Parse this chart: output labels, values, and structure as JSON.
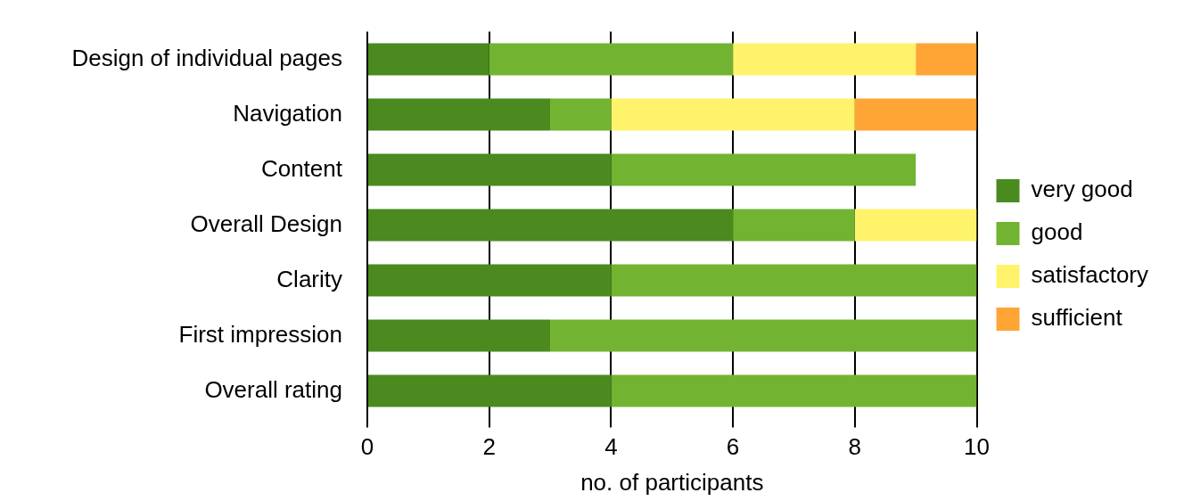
{
  "chart_data": {
    "type": "bar",
    "orientation": "horizontal",
    "stacked": true,
    "xlabel": "no. of participants",
    "categories": [
      "Design of individual pages",
      "Navigation",
      "Content",
      "Overall Design",
      "Clarity",
      "First impression",
      "Overall rating"
    ],
    "series": [
      {
        "name": "very good",
        "color": "#4a8a1f",
        "values": [
          2,
          3,
          4,
          6,
          4,
          3,
          4
        ]
      },
      {
        "name": "good",
        "color": "#72b332",
        "values": [
          4,
          1,
          5,
          2,
          6,
          7,
          6
        ]
      },
      {
        "name": "satisfactory",
        "color": "#fff36b",
        "values": [
          3,
          4,
          0,
          2,
          0,
          0,
          0
        ]
      },
      {
        "name": "sufficient",
        "color": "#ffa535",
        "values": [
          1,
          2,
          0,
          0,
          0,
          0,
          0
        ]
      }
    ],
    "xlim": [
      0,
      10
    ],
    "xticks": [
      0,
      2,
      4,
      6,
      8,
      10
    ],
    "grid": "x",
    "legend": "right"
  }
}
